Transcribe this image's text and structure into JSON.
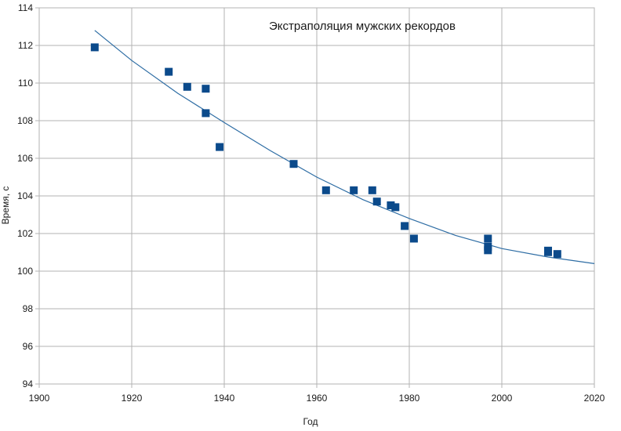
{
  "chart_data": {
    "type": "scatter",
    "title": "Экстраполяция мужских рекордов",
    "xlabel": "Год",
    "ylabel": "Время, с",
    "xlim": [
      1900,
      2020
    ],
    "ylim": [
      94,
      114
    ],
    "x_ticks": [
      1900,
      1920,
      1940,
      1960,
      1980,
      2000,
      2020
    ],
    "y_ticks": [
      94,
      96,
      98,
      100,
      102,
      104,
      106,
      108,
      110,
      112,
      114
    ],
    "grid": true,
    "legend": "none",
    "series": [
      {
        "type": "scatter",
        "marker": "square",
        "color": "#0b4a8b",
        "points": [
          [
            1912,
            111.9
          ],
          [
            1928,
            110.6
          ],
          [
            1932,
            109.8
          ],
          [
            1936,
            109.7
          ],
          [
            1936,
            108.4
          ],
          [
            1939,
            106.6
          ],
          [
            1955,
            105.7
          ],
          [
            1962,
            104.3
          ],
          [
            1968,
            104.3
          ],
          [
            1972,
            104.3
          ],
          [
            1973,
            103.7
          ],
          [
            1976,
            103.5
          ],
          [
            1977,
            103.4
          ],
          [
            1979,
            102.4
          ],
          [
            1981,
            101.73
          ],
          [
            1997,
            101.73
          ],
          [
            1997,
            101.3
          ],
          [
            1997,
            101.11
          ],
          [
            2010,
            101.09
          ],
          [
            2010,
            101.01
          ],
          [
            2012,
            100.91
          ]
        ]
      },
      {
        "type": "line",
        "color": "#2e6da4",
        "points": [
          [
            1912,
            112.8
          ],
          [
            1920,
            111.2
          ],
          [
            1930,
            109.45
          ],
          [
            1940,
            107.9
          ],
          [
            1950,
            106.4
          ],
          [
            1960,
            105.0
          ],
          [
            1970,
            103.8
          ],
          [
            1980,
            102.8
          ],
          [
            1990,
            101.9
          ],
          [
            2000,
            101.2
          ],
          [
            2010,
            100.75
          ],
          [
            2020,
            100.4
          ]
        ]
      }
    ]
  }
}
